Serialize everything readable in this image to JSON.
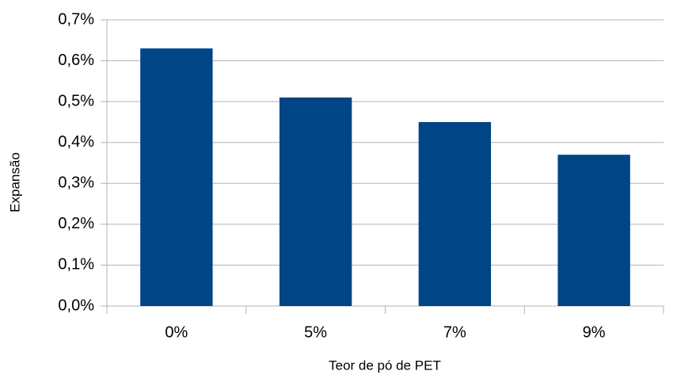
{
  "chart_data": {
    "type": "bar",
    "x_label": "Teor de pó de PET",
    "y_label": "Expansão",
    "categories": [
      "0%",
      "5%",
      "7%",
      "9%"
    ],
    "values": [
      0.63,
      0.51,
      0.45,
      0.37
    ],
    "color": "#004586",
    "ylim": [
      0,
      0.7
    ],
    "yticks": [
      {
        "value": 0,
        "label": "0,0%"
      },
      {
        "value": 0.1,
        "label": "0,1%"
      },
      {
        "value": 0.2,
        "label": "0,2%"
      },
      {
        "value": 0.3,
        "label": "0,3%"
      },
      {
        "value": 0.4,
        "label": "0,4%"
      },
      {
        "value": 0.5,
        "label": "0,5%"
      },
      {
        "value": 0.6,
        "label": "0,6%"
      },
      {
        "value": 0.7,
        "label": "0,7%"
      }
    ],
    "grid": true
  }
}
